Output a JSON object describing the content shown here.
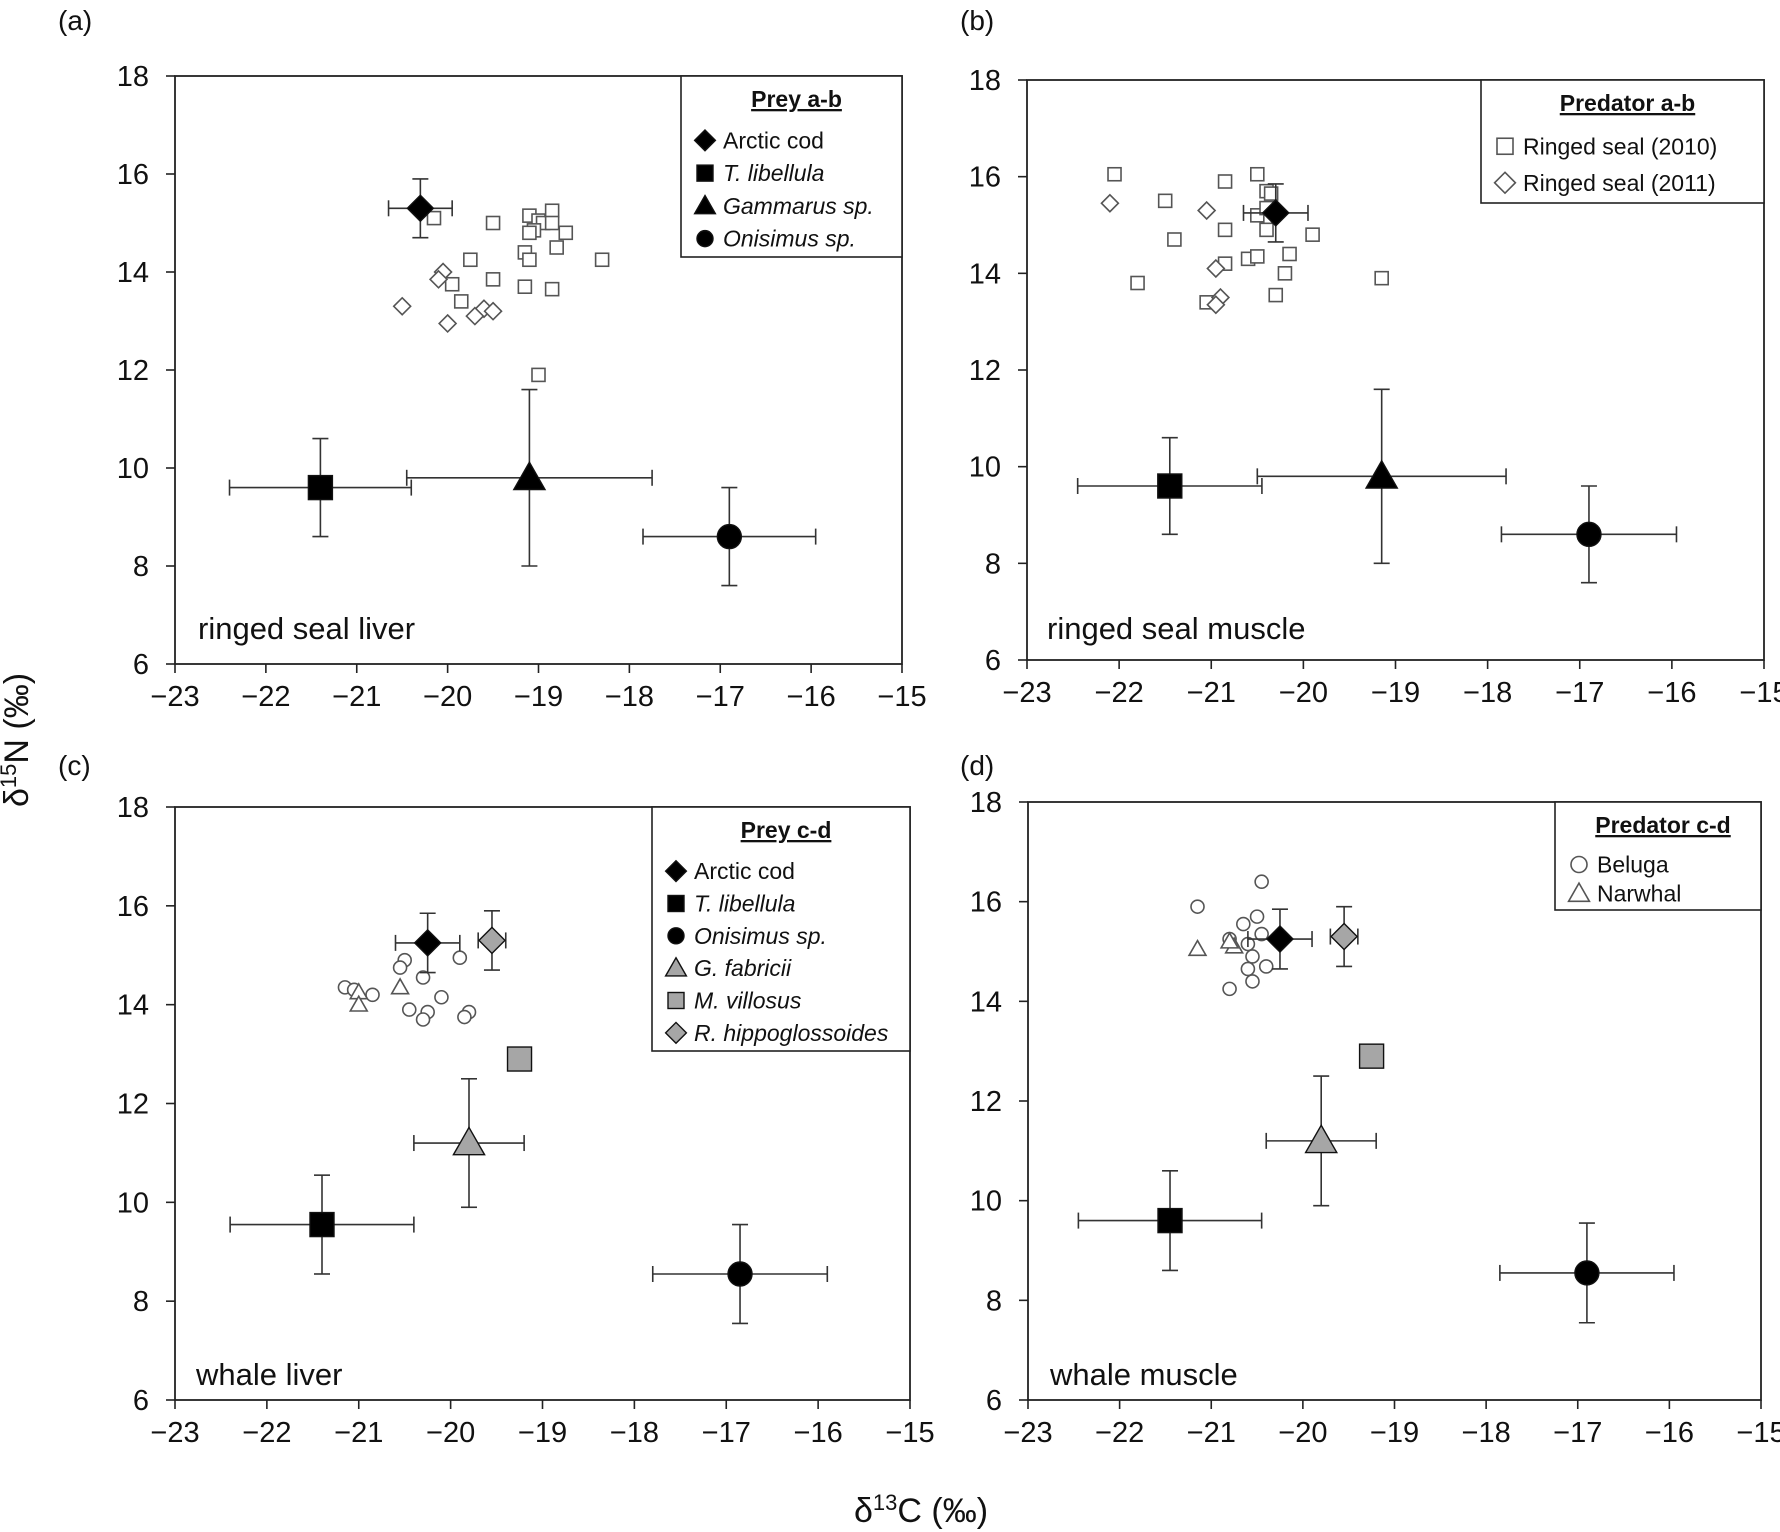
{
  "figure": {
    "y_axis_label": "δ15N (‰)",
    "x_axis_label": "δ13C (‰)"
  },
  "chart_data": [
    {
      "type": "scatter",
      "id": "a",
      "panel_label": "(a)",
      "title": "ringed seal liver",
      "xlim": [
        -23,
        -15
      ],
      "ylim": [
        6,
        18
      ],
      "xticks": [
        -23,
        -22,
        -21,
        -20,
        -19,
        -18,
        -17,
        -16,
        -15
      ],
      "yticks": [
        6,
        8,
        10,
        12,
        14,
        16,
        18
      ],
      "xtick_labels": [
        "−23",
        "−22",
        "−21",
        "−20",
        "−19",
        "−18",
        "−17",
        "−16",
        "−15"
      ],
      "ytick_labels": [
        "6",
        "8",
        "10",
        "12",
        "14",
        "16",
        "18"
      ],
      "legend": {
        "title": "Prey a-b",
        "position": "top-right",
        "entries": [
          {
            "label": "Arctic cod",
            "marker": "diamond",
            "fill": "#000000",
            "italic": false
          },
          {
            "label": "T. libellula",
            "marker": "square",
            "fill": "#000000",
            "italic": true
          },
          {
            "label": "Gammarus sp.",
            "marker": "triangle",
            "fill": "#000000",
            "italic": true
          },
          {
            "label": "Onisimus sp.",
            "marker": "circle",
            "fill": "#000000",
            "italic": true
          }
        ]
      },
      "prey": [
        {
          "name": "Arctic cod",
          "marker": "diamond",
          "fill": "#000000",
          "x": -20.3,
          "y": 15.3,
          "xerr": 0.35,
          "yerr": 0.6
        },
        {
          "name": "T. libellula",
          "marker": "square",
          "fill": "#000000",
          "x": -21.4,
          "y": 9.6,
          "xerr": 1.0,
          "yerr": 1.0
        },
        {
          "name": "Gammarus sp.",
          "marker": "triangle",
          "fill": "#000000",
          "x": -19.1,
          "y": 9.8,
          "xerr": 1.35,
          "yerr": 1.8
        },
        {
          "name": "Onisimus sp.",
          "marker": "circle",
          "fill": "#000000",
          "x": -16.9,
          "y": 8.6,
          "xerr": 0.95,
          "yerr": 1.0
        }
      ],
      "series": [
        {
          "name": "Ringed seal (2010)",
          "marker": "square-open",
          "points": [
            [
              -20.15,
              15.1
            ],
            [
              -19.5,
              15.0
            ],
            [
              -19.1,
              15.15
            ],
            [
              -19.0,
              15.05
            ],
            [
              -18.95,
              15.0
            ],
            [
              -19.05,
              14.85
            ],
            [
              -19.1,
              14.8
            ],
            [
              -18.85,
              15.25
            ],
            [
              -18.85,
              15.0
            ],
            [
              -18.7,
              14.8
            ],
            [
              -18.8,
              14.5
            ],
            [
              -19.15,
              14.4
            ],
            [
              -19.1,
              14.25
            ],
            [
              -18.3,
              14.25
            ],
            [
              -19.75,
              14.25
            ],
            [
              -19.95,
              13.75
            ],
            [
              -19.5,
              13.85
            ],
            [
              -19.15,
              13.7
            ],
            [
              -18.85,
              13.65
            ],
            [
              -19.85,
              13.4
            ],
            [
              -19.0,
              11.9
            ]
          ]
        },
        {
          "name": "Ringed seal (2011)",
          "marker": "diamond-open",
          "points": [
            [
              -20.05,
              14.0
            ],
            [
              -20.1,
              13.85
            ],
            [
              -20.5,
              13.3
            ],
            [
              -19.6,
              13.25
            ],
            [
              -19.5,
              13.2
            ],
            [
              -19.7,
              13.1
            ],
            [
              -20.0,
              12.95
            ]
          ]
        }
      ]
    },
    {
      "type": "scatter",
      "id": "b",
      "panel_label": "(b)",
      "title": "ringed seal muscle",
      "xlim": [
        -23,
        -15
      ],
      "ylim": [
        6,
        18
      ],
      "xticks": [
        -23,
        -22,
        -21,
        -20,
        -19,
        -18,
        -17,
        -16,
        -15
      ],
      "yticks": [
        6,
        8,
        10,
        12,
        14,
        16,
        18
      ],
      "xtick_labels": [
        "−23",
        "−22",
        "−21",
        "−20",
        "−19",
        "−18",
        "−17",
        "−16",
        "−15"
      ],
      "ytick_labels": [
        "6",
        "8",
        "10",
        "12",
        "14",
        "16",
        "18"
      ],
      "legend": {
        "title": "Predator a-b",
        "position": "top-right",
        "entries": [
          {
            "label": "Ringed seal (2010)",
            "marker": "square-open",
            "fill": "#ffffff",
            "italic": false
          },
          {
            "label": "Ringed seal (2011)",
            "marker": "diamond-open",
            "fill": "#ffffff",
            "italic": false
          }
        ]
      },
      "prey": [
        {
          "name": "Arctic cod",
          "marker": "diamond",
          "fill": "#000000",
          "x": -20.3,
          "y": 15.25,
          "xerr": 0.35,
          "yerr": 0.6
        },
        {
          "name": "T. libellula",
          "marker": "square",
          "fill": "#000000",
          "x": -21.45,
          "y": 9.6,
          "xerr": 1.0,
          "yerr": 1.0
        },
        {
          "name": "Gammarus sp.",
          "marker": "triangle",
          "fill": "#000000",
          "x": -19.15,
          "y": 9.8,
          "xerr": 1.35,
          "yerr": 1.8
        },
        {
          "name": "Onisimus sp.",
          "marker": "circle",
          "fill": "#000000",
          "x": -16.9,
          "y": 8.6,
          "xerr": 0.95,
          "yerr": 1.0
        }
      ],
      "series": [
        {
          "name": "Ringed seal (2010)",
          "marker": "square-open",
          "points": [
            [
              -22.05,
              16.05
            ],
            [
              -20.5,
              16.05
            ],
            [
              -20.85,
              15.9
            ],
            [
              -20.4,
              15.7
            ],
            [
              -20.35,
              15.65
            ],
            [
              -21.5,
              15.5
            ],
            [
              -20.5,
              15.2
            ],
            [
              -20.4,
              15.35
            ],
            [
              -21.4,
              14.7
            ],
            [
              -20.85,
              14.9
            ],
            [
              -20.4,
              14.9
            ],
            [
              -19.9,
              14.8
            ],
            [
              -20.6,
              14.3
            ],
            [
              -20.5,
              14.35
            ],
            [
              -20.15,
              14.4
            ],
            [
              -20.85,
              14.2
            ],
            [
              -20.2,
              14.0
            ],
            [
              -19.15,
              13.9
            ],
            [
              -21.8,
              13.8
            ],
            [
              -20.3,
              13.55
            ],
            [
              -21.05,
              13.4
            ]
          ]
        },
        {
          "name": "Ringed seal (2011)",
          "marker": "diamond-open",
          "points": [
            [
              -22.1,
              15.45
            ],
            [
              -21.05,
              15.3
            ],
            [
              -20.95,
              14.1
            ],
            [
              -20.9,
              13.5
            ],
            [
              -20.95,
              13.35
            ]
          ]
        }
      ]
    },
    {
      "type": "scatter",
      "id": "c",
      "panel_label": "(c)",
      "title": "whale liver",
      "xlim": [
        -23,
        -15
      ],
      "ylim": [
        6,
        18
      ],
      "xticks": [
        -23,
        -22,
        -21,
        -20,
        -19,
        -18,
        -17,
        -16,
        -15
      ],
      "yticks": [
        6,
        8,
        10,
        12,
        14,
        16,
        18
      ],
      "xtick_labels": [
        "−23",
        "−22",
        "−21",
        "−20",
        "−19",
        "−18",
        "−17",
        "−16",
        "−15"
      ],
      "ytick_labels": [
        "6",
        "8",
        "10",
        "12",
        "14",
        "16",
        "18"
      ],
      "legend": {
        "title": "Prey c-d",
        "position": "top-right",
        "entries": [
          {
            "label": "Arctic cod",
            "marker": "diamond",
            "fill": "#000000",
            "italic": false
          },
          {
            "label": "T. libellula",
            "marker": "square",
            "fill": "#000000",
            "italic": true
          },
          {
            "label": "Onisimus sp.",
            "marker": "circle",
            "fill": "#000000",
            "italic": true
          },
          {
            "label": "G. fabricii",
            "marker": "triangle",
            "fill": "#a6a6a6",
            "italic": true
          },
          {
            "label": "M. villosus",
            "marker": "square",
            "fill": "#a6a6a6",
            "italic": true
          },
          {
            "label": "R. hippoglossoides",
            "marker": "diamond",
            "fill": "#a6a6a6",
            "italic": true
          }
        ]
      },
      "prey": [
        {
          "name": "Arctic cod",
          "marker": "diamond",
          "fill": "#000000",
          "x": -20.25,
          "y": 15.25,
          "xerr": 0.35,
          "yerr": 0.6
        },
        {
          "name": "T. libellula",
          "marker": "square",
          "fill": "#000000",
          "x": -21.4,
          "y": 9.55,
          "xerr": 1.0,
          "yerr": 1.0
        },
        {
          "name": "Onisimus sp.",
          "marker": "circle",
          "fill": "#000000",
          "x": -16.85,
          "y": 8.55,
          "xerr": 0.95,
          "yerr": 1.0
        },
        {
          "name": "G. fabricii",
          "marker": "triangle",
          "fill": "#a6a6a6",
          "x": -19.8,
          "y": 11.2,
          "xerr": 0.6,
          "yerr": 1.3
        },
        {
          "name": "M. villosus",
          "marker": "square",
          "fill": "#a6a6a6",
          "x": -19.25,
          "y": 12.9,
          "xerr": 0,
          "yerr": 0
        },
        {
          "name": "R. hippoglossoides",
          "marker": "diamond",
          "fill": "#a6a6a6",
          "x": -19.55,
          "y": 15.3,
          "xerr": 0.15,
          "yerr": 0.6
        }
      ],
      "series": [
        {
          "name": "Beluga",
          "marker": "circle-open",
          "points": [
            [
              -20.5,
              14.9
            ],
            [
              -20.55,
              14.75
            ],
            [
              -20.3,
              14.55
            ],
            [
              -19.9,
              14.95
            ],
            [
              -21.15,
              14.35
            ],
            [
              -21.05,
              14.3
            ],
            [
              -20.85,
              14.2
            ],
            [
              -20.1,
              14.15
            ],
            [
              -20.45,
              13.9
            ],
            [
              -20.25,
              13.85
            ],
            [
              -19.8,
              13.85
            ],
            [
              -19.85,
              13.75
            ],
            [
              -20.3,
              13.7
            ]
          ]
        },
        {
          "name": "Narwhal",
          "marker": "triangle-open",
          "points": [
            [
              -20.55,
              14.35
            ],
            [
              -21.0,
              14.25
            ],
            [
              -21.0,
              14.0
            ]
          ]
        }
      ]
    },
    {
      "type": "scatter",
      "id": "d",
      "panel_label": "(d)",
      "title": "whale muscle",
      "xlim": [
        -23,
        -15
      ],
      "ylim": [
        6,
        18
      ],
      "xticks": [
        -23,
        -22,
        -21,
        -20,
        -19,
        -18,
        -17,
        -16,
        -15
      ],
      "yticks": [
        6,
        8,
        10,
        12,
        14,
        16,
        18
      ],
      "xtick_labels": [
        "−23",
        "−22",
        "−21",
        "−20",
        "−19",
        "−18",
        "−17",
        "−16",
        "−15"
      ],
      "ytick_labels": [
        "6",
        "8",
        "10",
        "12",
        "14",
        "16",
        "18"
      ],
      "legend": {
        "title": "Predator c-d",
        "position": "top-right",
        "entries": [
          {
            "label": "Beluga",
            "marker": "circle-open",
            "fill": "#ffffff",
            "italic": false
          },
          {
            "label": "Narwhal",
            "marker": "triangle-open",
            "fill": "#ffffff",
            "italic": false
          }
        ]
      },
      "prey": [
        {
          "name": "Arctic cod",
          "marker": "diamond",
          "fill": "#000000",
          "x": -20.25,
          "y": 15.25,
          "xerr": 0.35,
          "yerr": 0.6
        },
        {
          "name": "T. libellula",
          "marker": "square",
          "fill": "#000000",
          "x": -21.45,
          "y": 9.6,
          "xerr": 1.0,
          "yerr": 1.0
        },
        {
          "name": "Onisimus sp.",
          "marker": "circle",
          "fill": "#000000",
          "x": -16.9,
          "y": 8.55,
          "xerr": 0.95,
          "yerr": 1.0
        },
        {
          "name": "G. fabricii",
          "marker": "triangle",
          "fill": "#a6a6a6",
          "x": -19.8,
          "y": 11.2,
          "xerr": 0.6,
          "yerr": 1.3
        },
        {
          "name": "M. villosus",
          "marker": "square",
          "fill": "#a6a6a6",
          "x": -19.25,
          "y": 12.9,
          "xerr": 0,
          "yerr": 0
        },
        {
          "name": "R. hippoglossoides",
          "marker": "diamond",
          "fill": "#a6a6a6",
          "x": -19.55,
          "y": 15.3,
          "xerr": 0.15,
          "yerr": 0.6
        }
      ],
      "series": [
        {
          "name": "Beluga",
          "marker": "circle-open",
          "points": [
            [
              -20.45,
              16.4
            ],
            [
              -21.15,
              15.9
            ],
            [
              -20.5,
              15.7
            ],
            [
              -20.65,
              15.55
            ],
            [
              -20.45,
              15.35
            ],
            [
              -20.8,
              15.25
            ],
            [
              -20.6,
              15.15
            ],
            [
              -20.55,
              14.9
            ],
            [
              -20.6,
              14.65
            ],
            [
              -20.4,
              14.7
            ],
            [
              -20.55,
              14.4
            ],
            [
              -20.8,
              14.25
            ]
          ]
        },
        {
          "name": "Narwhal",
          "marker": "triangle-open",
          "points": [
            [
              -21.15,
              15.05
            ],
            [
              -20.75,
              15.1
            ],
            [
              -20.8,
              15.2
            ]
          ]
        }
      ]
    }
  ]
}
